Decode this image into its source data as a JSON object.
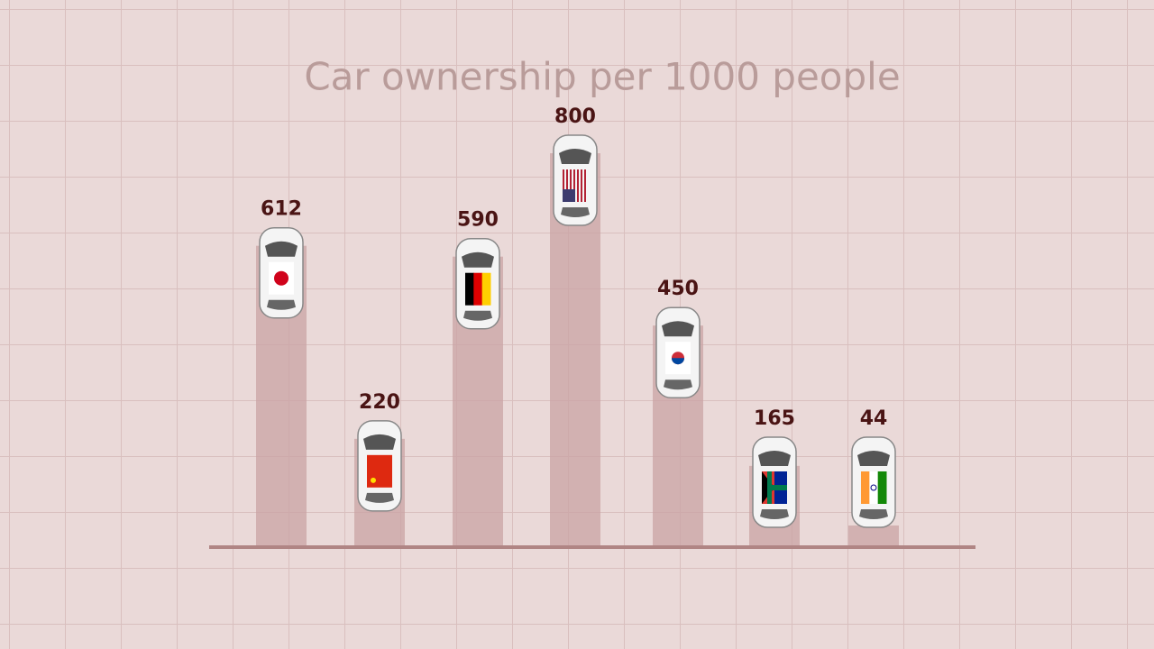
{
  "chart_data": {
    "type": "bar",
    "title": "Car ownership per 1000 people",
    "values": [
      612,
      220,
      590,
      800,
      450,
      165,
      44
    ],
    "color": "#c9a3a4"
  }
}
